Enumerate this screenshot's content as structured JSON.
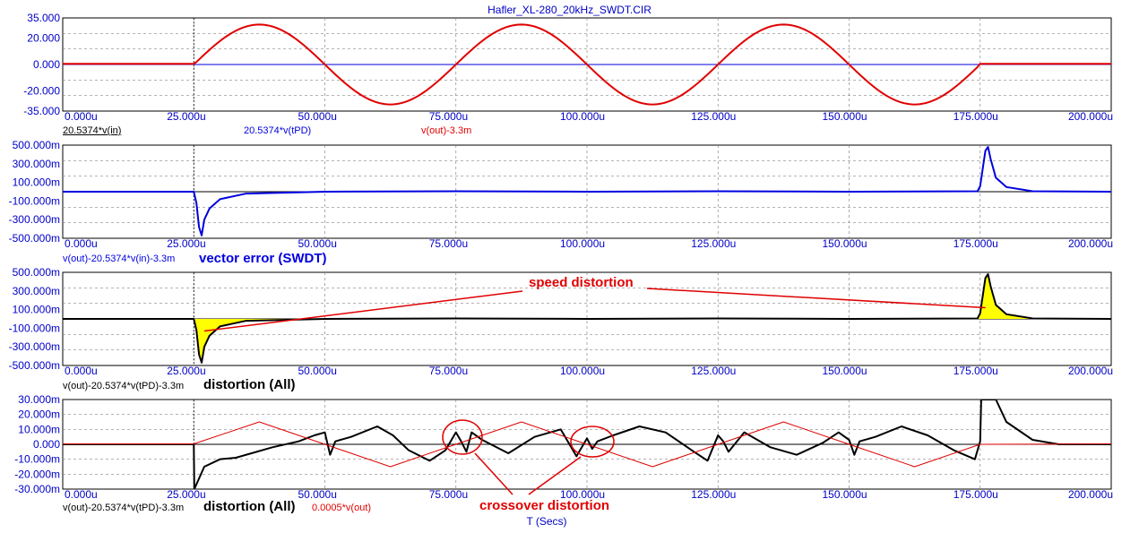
{
  "window_title": "Hafler_XL-280_20kHz_SWDT.CIR",
  "x_axis": {
    "label": "T (Secs)",
    "ticks": [
      "0.000u",
      "25.000u",
      "50.000u",
      "75.000u",
      "100.000u",
      "125.000u",
      "150.000u",
      "175.000u",
      "200.000u"
    ],
    "range": [
      0,
      200
    ]
  },
  "colors": {
    "axis_text": "#0000c8",
    "red": "#e00000",
    "blue": "#0000e0",
    "black": "#000000",
    "fill": "#ffff00",
    "grid": "#888888"
  },
  "chart_data": [
    {
      "type": "line",
      "xlim": [
        0,
        200
      ],
      "ylim": [
        -35,
        35
      ],
      "y_ticks": [
        "35.000",
        "20.000",
        "0.000",
        "-20.000",
        "-35.000"
      ],
      "y_tick_values": [
        35,
        20,
        0,
        -20,
        -35
      ],
      "series": [
        {
          "name": "20.5374*v(in)",
          "color": "#000000"
        },
        {
          "name": "20.5374*v(tPD)",
          "color": "#0000e0"
        },
        {
          "name": "v(out)-3.3m",
          "color": "#e00000"
        }
      ],
      "description_points": {
        "signal": "20 kHz sine burst from 25u to 175u, amplitude 30",
        "x": [
          0,
          25,
          37.5,
          50,
          62.5,
          75,
          87.5,
          100,
          112.5,
          125,
          137.5,
          150,
          162.5,
          175,
          200
        ],
        "y": [
          0.5,
          0.5,
          30,
          0,
          -30,
          0,
          30,
          0,
          -30,
          0,
          30,
          0,
          -30,
          0,
          0.5
        ]
      }
    },
    {
      "type": "line",
      "xlim": [
        0,
        200
      ],
      "ylim": [
        -500,
        500
      ],
      "y_ticks": [
        "500.000m",
        "300.000m",
        "100.000m",
        "-100.000m",
        "-300.000m",
        "-500.000m"
      ],
      "y_tick_values": [
        500,
        300,
        100,
        -100,
        -300,
        -500
      ],
      "series": [
        {
          "name": "v(out)-20.5374*v(in)-3.3m",
          "color": "#0000e0",
          "x": [
            0,
            25,
            25.5,
            26,
            26.5,
            27,
            28,
            30,
            35,
            50,
            75,
            100,
            125,
            150,
            174.5,
            175,
            175.5,
            176,
            176.5,
            177,
            178,
            180,
            185,
            200
          ],
          "y": [
            0,
            0,
            -120,
            -380,
            -470,
            -300,
            -180,
            -80,
            -20,
            0,
            5,
            0,
            5,
            0,
            5,
            60,
            250,
            440,
            480,
            350,
            150,
            50,
            5,
            0
          ]
        }
      ],
      "annotation": "vector error (SWDT)"
    },
    {
      "type": "line",
      "xlim": [
        0,
        200
      ],
      "ylim": [
        -500,
        500
      ],
      "y_ticks": [
        "500.000m",
        "300.000m",
        "100.000m",
        "-100.000m",
        "-300.000m",
        "-500.000m"
      ],
      "y_tick_values": [
        500,
        300,
        100,
        -100,
        -300,
        -500
      ],
      "series": [
        {
          "name": "v(out)-20.5374*v(tPD)-3.3m",
          "color": "#000000",
          "x": [
            0,
            25,
            25.5,
            26,
            26.5,
            27,
            28,
            30,
            35,
            50,
            75,
            100,
            125,
            150,
            174.5,
            175,
            175.5,
            176,
            176.5,
            177,
            178,
            180,
            185,
            200
          ],
          "y": [
            0,
            0,
            -120,
            -380,
            -470,
            -300,
            -180,
            -80,
            -20,
            0,
            5,
            0,
            5,
            0,
            5,
            60,
            250,
            440,
            480,
            350,
            150,
            50,
            5,
            0
          ]
        }
      ],
      "annotations": [
        "speed distortion"
      ],
      "footer_label": "distortion (All)"
    },
    {
      "type": "line",
      "xlim": [
        0,
        200
      ],
      "ylim": [
        -30,
        30
      ],
      "y_ticks": [
        "30.000m",
        "20.000m",
        "10.000m",
        "0.000",
        "-10.000m",
        "-20.000m",
        "-30.000m"
      ],
      "y_tick_values": [
        30,
        20,
        10,
        0,
        -10,
        -20,
        -30
      ],
      "series": [
        {
          "name": "v(out)-20.5374*v(tPD)-3.3m",
          "color": "#000000",
          "x": [
            0,
            25,
            25.1,
            27,
            30,
            33,
            36,
            40,
            45,
            48,
            50,
            51,
            52,
            55,
            60,
            63,
            66,
            70,
            73,
            75,
            76,
            77,
            78,
            80,
            85,
            90,
            95,
            98,
            100,
            101,
            102,
            105,
            110,
            115,
            120,
            123,
            125,
            126,
            127,
            130,
            135,
            140,
            145,
            148,
            150,
            151,
            152,
            155,
            160,
            165,
            170,
            174,
            175,
            175.2,
            176,
            178,
            180,
            185,
            190,
            200
          ],
          "y": [
            0,
            0,
            -30,
            -15,
            -10,
            -9,
            -6,
            -2,
            2,
            6,
            8,
            -7,
            2,
            5,
            12,
            6,
            -4,
            -11,
            -4,
            8,
            2,
            -5,
            8,
            3,
            -6,
            5,
            10,
            -8,
            4,
            -3,
            2,
            6,
            12,
            8,
            -4,
            -11,
            6,
            2,
            -5,
            8,
            -2,
            -7,
            1,
            8,
            3,
            -7,
            2,
            5,
            12,
            6,
            -4,
            -10,
            2,
            30,
            30,
            30,
            15,
            3,
            0,
            0
          ]
        },
        {
          "name": "0.0005*v(out)",
          "color": "#e00000",
          "x": [
            0,
            25,
            37.5,
            50,
            62.5,
            75,
            87.5,
            100,
            112.5,
            125,
            137.5,
            150,
            162.5,
            175,
            200
          ],
          "y": [
            0.3,
            0.3,
            15,
            0,
            -15,
            0,
            15,
            0,
            -15,
            0,
            15,
            0,
            -15,
            0,
            0.3
          ]
        }
      ],
      "annotations": [
        "crossover distortion"
      ],
      "footer_label": "distortion (All)"
    }
  ],
  "panels": [
    {
      "labels": [
        "20.5374*v(in)",
        "20.5374*v(tPD)",
        "v(out)-3.3m"
      ]
    },
    {
      "labels": [
        "v(out)-20.5374*v(in)-3.3m"
      ],
      "annotation": "vector error (SWDT)"
    },
    {
      "labels": [
        "v(out)-20.5374*v(tPD)-3.3m"
      ],
      "annotation": "distortion (All)",
      "callout": "speed distortion"
    },
    {
      "labels": [
        "v(out)-20.5374*v(tPD)-3.3m",
        "0.0005*v(out)"
      ],
      "annotation": "distortion (All)",
      "callout": "crossover distortion"
    }
  ]
}
